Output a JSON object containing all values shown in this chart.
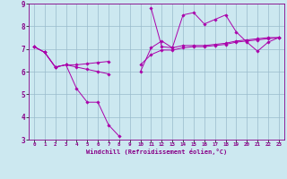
{
  "xlabel": "Windchill (Refroidissement éolien,°C)",
  "bg_color": "#cce8f0",
  "line_color": "#aa00aa",
  "grid_color": "#99bbcc",
  "xlim": [
    -0.5,
    23.5
  ],
  "ylim": [
    3,
    9
  ],
  "xticks": [
    0,
    1,
    2,
    3,
    4,
    5,
    6,
    7,
    8,
    9,
    10,
    11,
    12,
    13,
    14,
    15,
    16,
    17,
    18,
    19,
    20,
    21,
    22,
    23
  ],
  "yticks": [
    3,
    4,
    5,
    6,
    7,
    8,
    9
  ],
  "line1_y": [
    7.1,
    6.85,
    6.2,
    6.3,
    5.25,
    4.65,
    4.65,
    3.65,
    3.15,
    null,
    null,
    8.8,
    7.1,
    7.05,
    8.5,
    8.6,
    8.1,
    8.3,
    8.5,
    7.75,
    7.3,
    6.9,
    7.3,
    7.5
  ],
  "line2_y": [
    7.1,
    6.85,
    6.2,
    6.3,
    6.3,
    6.35,
    6.4,
    6.45,
    null,
    null,
    6.0,
    7.05,
    7.35,
    7.05,
    7.15,
    7.15,
    7.15,
    7.2,
    7.25,
    7.35,
    7.4,
    7.45,
    7.5,
    7.5
  ],
  "line3_y": [
    7.1,
    6.85,
    6.2,
    6.3,
    6.2,
    6.1,
    6.0,
    5.9,
    null,
    null,
    6.3,
    6.75,
    6.95,
    6.95,
    7.05,
    7.1,
    7.1,
    7.15,
    7.2,
    7.3,
    7.35,
    7.4,
    7.45,
    7.5
  ]
}
